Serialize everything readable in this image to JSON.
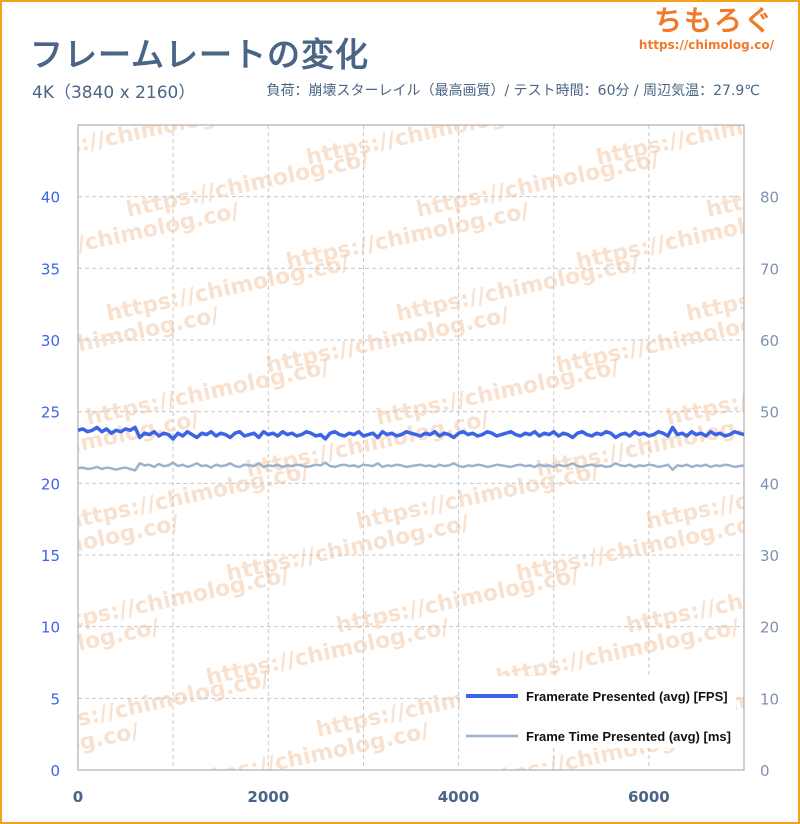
{
  "header": {
    "title": "フレームレートの変化",
    "subtitle_left": "4K（3840 x 2160）",
    "subtitle_right": "負荷：崩壊スターレイル（最高画質）/ テスト時間：60分 / 周辺気温：27.9℃"
  },
  "brand": {
    "name": "ちもろぐ",
    "url": "https://chimolog.co/"
  },
  "watermark": "https://chimolog.co/",
  "colors": {
    "fps": "#3c64e8",
    "frametime": "#9db2cc",
    "frame": "#f3a21c",
    "title": "#4a6585"
  },
  "chart_data": {
    "type": "line",
    "title": "",
    "xlabel": "",
    "ylabel_left": "",
    "ylabel_right": "",
    "x_range": [
      0,
      7000
    ],
    "x_ticks": [
      0,
      2000,
      4000,
      6000
    ],
    "y_left_range": [
      0,
      45
    ],
    "y_left_ticks": [
      0,
      5,
      10,
      15,
      20,
      25,
      30,
      35,
      40
    ],
    "y_right_range": [
      0,
      90
    ],
    "y_right_ticks": [
      0,
      10,
      20,
      30,
      40,
      50,
      60,
      70,
      80
    ],
    "grid": true,
    "legend_position": "bottom-right",
    "series": [
      {
        "name": "Framerate Presented (avg) [FPS]",
        "axis": "left",
        "x": [
          0,
          50,
          100,
          150,
          200,
          250,
          300,
          350,
          400,
          450,
          500,
          550,
          600,
          650,
          700,
          750,
          800,
          850,
          900,
          950,
          1000,
          1050,
          1100,
          1150,
          1200,
          1250,
          1300,
          1350,
          1400,
          1450,
          1500,
          1550,
          1600,
          1650,
          1700,
          1750,
          1800,
          1850,
          1900,
          1950,
          2000,
          2050,
          2100,
          2150,
          2200,
          2250,
          2300,
          2350,
          2400,
          2450,
          2500,
          2550,
          2600,
          2650,
          2700,
          2750,
          2800,
          2850,
          2900,
          2950,
          3000,
          3050,
          3100,
          3150,
          3200,
          3250,
          3300,
          3350,
          3400,
          3450,
          3500,
          3550,
          3600,
          3650,
          3700,
          3750,
          3800,
          3850,
          3900,
          3950,
          4000,
          4050,
          4100,
          4150,
          4200,
          4250,
          4300,
          4350,
          4400,
          4450,
          4500,
          4550,
          4600,
          4650,
          4700,
          4750,
          4800,
          4850,
          4900,
          4950,
          5000,
          5050,
          5100,
          5150,
          5200,
          5250,
          5300,
          5350,
          5400,
          5450,
          5500,
          5550,
          5600,
          5650,
          5700,
          5750,
          5800,
          5850,
          5900,
          5950,
          6000,
          6050,
          6100,
          6150,
          6200,
          6250,
          6300,
          6350,
          6400,
          6450,
          6500,
          6550,
          6600,
          6650,
          6700,
          6750,
          6800,
          6850,
          6900,
          6950,
          7000
        ],
        "values": [
          23.7,
          23.8,
          23.6,
          23.7,
          23.9,
          23.6,
          23.8,
          23.5,
          23.7,
          23.6,
          23.8,
          23.7,
          23.9,
          23.2,
          23.5,
          23.4,
          23.6,
          23.3,
          23.5,
          23.4,
          23.1,
          23.5,
          23.3,
          23.6,
          23.4,
          23.2,
          23.5,
          23.4,
          23.6,
          23.3,
          23.5,
          23.4,
          23.2,
          23.5,
          23.6,
          23.3,
          23.4,
          23.5,
          23.2,
          23.6,
          23.4,
          23.5,
          23.3,
          23.6,
          23.4,
          23.5,
          23.3,
          23.4,
          23.6,
          23.5,
          23.3,
          23.4,
          23.1,
          23.5,
          23.6,
          23.4,
          23.3,
          23.5,
          23.4,
          23.6,
          23.3,
          23.4,
          23.5,
          23.2,
          23.6,
          23.4,
          23.5,
          23.3,
          23.4,
          23.6,
          23.5,
          23.4,
          23.3,
          23.5,
          23.4,
          23.6,
          23.3,
          23.5,
          23.4,
          23.2,
          23.5,
          23.6,
          23.4,
          23.5,
          23.3,
          23.4,
          23.6,
          23.5,
          23.3,
          23.4,
          23.5,
          23.6,
          23.4,
          23.3,
          23.5,
          23.4,
          23.6,
          23.3,
          23.5,
          23.4,
          23.6,
          23.3,
          23.5,
          23.4,
          23.2,
          23.5,
          23.6,
          23.4,
          23.3,
          23.5,
          23.4,
          23.6,
          23.5,
          23.2,
          23.4,
          23.5,
          23.3,
          23.6,
          23.4,
          23.5,
          23.3,
          23.4,
          23.6,
          23.5,
          23.3,
          23.9,
          23.4,
          23.5,
          23.3,
          23.6,
          23.4,
          23.5,
          23.3,
          23.6,
          23.4,
          23.5,
          23.3,
          23.4,
          23.6,
          23.5,
          23.4
        ]
      },
      {
        "name": "Frame Time Presented (avg) [ms]",
        "axis": "right",
        "x": [
          0,
          50,
          100,
          150,
          200,
          250,
          300,
          350,
          400,
          450,
          500,
          550,
          600,
          650,
          700,
          750,
          800,
          850,
          900,
          950,
          1000,
          1050,
          1100,
          1150,
          1200,
          1250,
          1300,
          1350,
          1400,
          1450,
          1500,
          1550,
          1600,
          1650,
          1700,
          1750,
          1800,
          1850,
          1900,
          1950,
          2000,
          2050,
          2100,
          2150,
          2200,
          2250,
          2300,
          2350,
          2400,
          2450,
          2500,
          2550,
          2600,
          2650,
          2700,
          2750,
          2800,
          2850,
          2900,
          2950,
          3000,
          3050,
          3100,
          3150,
          3200,
          3250,
          3300,
          3350,
          3400,
          3450,
          3500,
          3550,
          3600,
          3650,
          3700,
          3750,
          3800,
          3850,
          3900,
          3950,
          4000,
          4050,
          4100,
          4150,
          4200,
          4250,
          4300,
          4350,
          4400,
          4450,
          4500,
          4550,
          4600,
          4650,
          4700,
          4750,
          4800,
          4850,
          4900,
          4950,
          5000,
          5050,
          5100,
          5150,
          5200,
          5250,
          5300,
          5350,
          5400,
          5450,
          5500,
          5550,
          5600,
          5650,
          5700,
          5750,
          5800,
          5850,
          5900,
          5950,
          6000,
          6050,
          6100,
          6150,
          6200,
          6250,
          6300,
          6350,
          6400,
          6450,
          6500,
          6550,
          6600,
          6650,
          6700,
          6750,
          6800,
          6850,
          6900,
          6950,
          7000
        ],
        "values": [
          42.1,
          42.2,
          42.0,
          42.1,
          42.3,
          42.0,
          42.2,
          42.1,
          41.9,
          42.1,
          42.2,
          42.0,
          41.8,
          42.8,
          42.5,
          42.6,
          42.3,
          42.7,
          42.4,
          42.5,
          42.9,
          42.4,
          42.6,
          42.3,
          42.5,
          42.8,
          42.4,
          42.5,
          42.2,
          42.6,
          42.4,
          42.5,
          42.8,
          42.4,
          42.3,
          42.6,
          42.5,
          42.4,
          42.8,
          42.3,
          42.5,
          42.4,
          42.6,
          42.3,
          42.5,
          42.4,
          42.6,
          42.5,
          42.3,
          42.4,
          42.6,
          42.5,
          42.9,
          42.4,
          42.3,
          42.5,
          42.6,
          42.4,
          42.5,
          42.3,
          42.6,
          42.5,
          42.4,
          42.8,
          42.3,
          42.5,
          42.4,
          42.6,
          42.5,
          42.3,
          42.4,
          42.5,
          42.6,
          42.4,
          42.5,
          42.3,
          42.6,
          42.4,
          42.5,
          42.8,
          42.4,
          42.3,
          42.5,
          42.4,
          42.6,
          42.5,
          42.3,
          42.4,
          42.6,
          42.5,
          42.4,
          42.3,
          42.5,
          42.6,
          42.4,
          42.5,
          42.3,
          42.6,
          42.4,
          42.5,
          42.3,
          42.6,
          42.4,
          42.5,
          42.8,
          42.4,
          42.3,
          42.5,
          42.6,
          42.4,
          42.5,
          42.3,
          42.4,
          42.8,
          42.5,
          42.4,
          42.6,
          42.3,
          42.5,
          42.4,
          42.6,
          42.5,
          42.3,
          42.4,
          42.6,
          41.9,
          42.5,
          42.4,
          42.6,
          42.3,
          42.5,
          42.4,
          42.6,
          42.3,
          42.5,
          42.4,
          42.6,
          42.5,
          42.3,
          42.4,
          42.5
        ]
      }
    ]
  }
}
